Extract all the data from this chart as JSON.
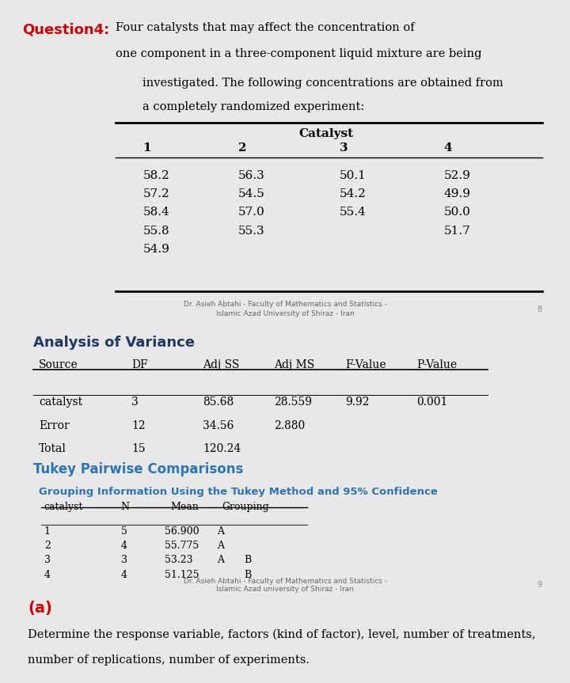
{
  "bg_color": "#e8e8e8",
  "panel1_bg": "#ffffff",
  "panel2_bg": "#ffffff",
  "panel3_bg": "#ffffff",
  "question_label": "Question4:",
  "question_label_color": "#cc0000",
  "catalyst_header": "Catalyst",
  "catalyst_cols": [
    "1",
    "2",
    "3",
    "4"
  ],
  "catalyst_data": [
    [
      "58.2",
      "56.3",
      "50.1",
      "52.9"
    ],
    [
      "57.2",
      "54.5",
      "54.2",
      "49.9"
    ],
    [
      "58.4",
      "57.0",
      "55.4",
      "50.0"
    ],
    [
      "55.8",
      "55.3",
      "",
      "51.7"
    ],
    [
      "54.9",
      "",
      "",
      ""
    ]
  ],
  "footer1_line1": "Dr. Asieh Abtahi - Faculty of Mathematics and Statistics -",
  "footer1_line2": "Islamic Azad University of Shiraz - Iran",
  "footer1_page": "8",
  "anova_title": "Analysis of Variance",
  "anova_headers": [
    "Source",
    "DF",
    "Adj SS",
    "Adj MS",
    "F-Value",
    "P-Value"
  ],
  "anova_rows": [
    [
      "catalyst",
      "3",
      "85.68",
      "28.559",
      "9.92",
      "0.001"
    ],
    [
      "Error",
      "12",
      "34.56",
      "2.880",
      "",
      ""
    ],
    [
      "Total",
      "15",
      "120.24",
      "",
      "",
      ""
    ]
  ],
  "tukey_title": "Tukey Pairwise Comparisons",
  "tukey_subtitle": "Grouping Information Using the Tukey Method and 95% Confidence",
  "tukey_headers": [
    "catalyst",
    "N",
    "Mean",
    "Grouping"
  ],
  "tukey_rows": [
    [
      "1",
      "5",
      "56.900",
      "A",
      ""
    ],
    [
      "2",
      "4",
      "55.775",
      "A",
      ""
    ],
    [
      "3",
      "3",
      "53.23",
      "A",
      "B"
    ],
    [
      "4",
      "4",
      "51.125",
      "",
      "B"
    ]
  ],
  "footer2_line1": "Dr. Asieh Abtahi - Faculty of Mathematics and Statistics -",
  "footer2_line2": "Islamic Azad university of Shiraz - Iran",
  "footer2_page": "9",
  "part_a_label": "(a)",
  "part_a_label_color": "#cc0000",
  "part_a_text1": "Determine the response variable, factors (kind of factor), level, number of treatments,",
  "part_a_text2": "number of replications, number of experiments.",
  "tukey_title_color": "#2e75b6",
  "tukey_subtitle_color": "#2e75b6",
  "anova_title_color": "#1f3864"
}
